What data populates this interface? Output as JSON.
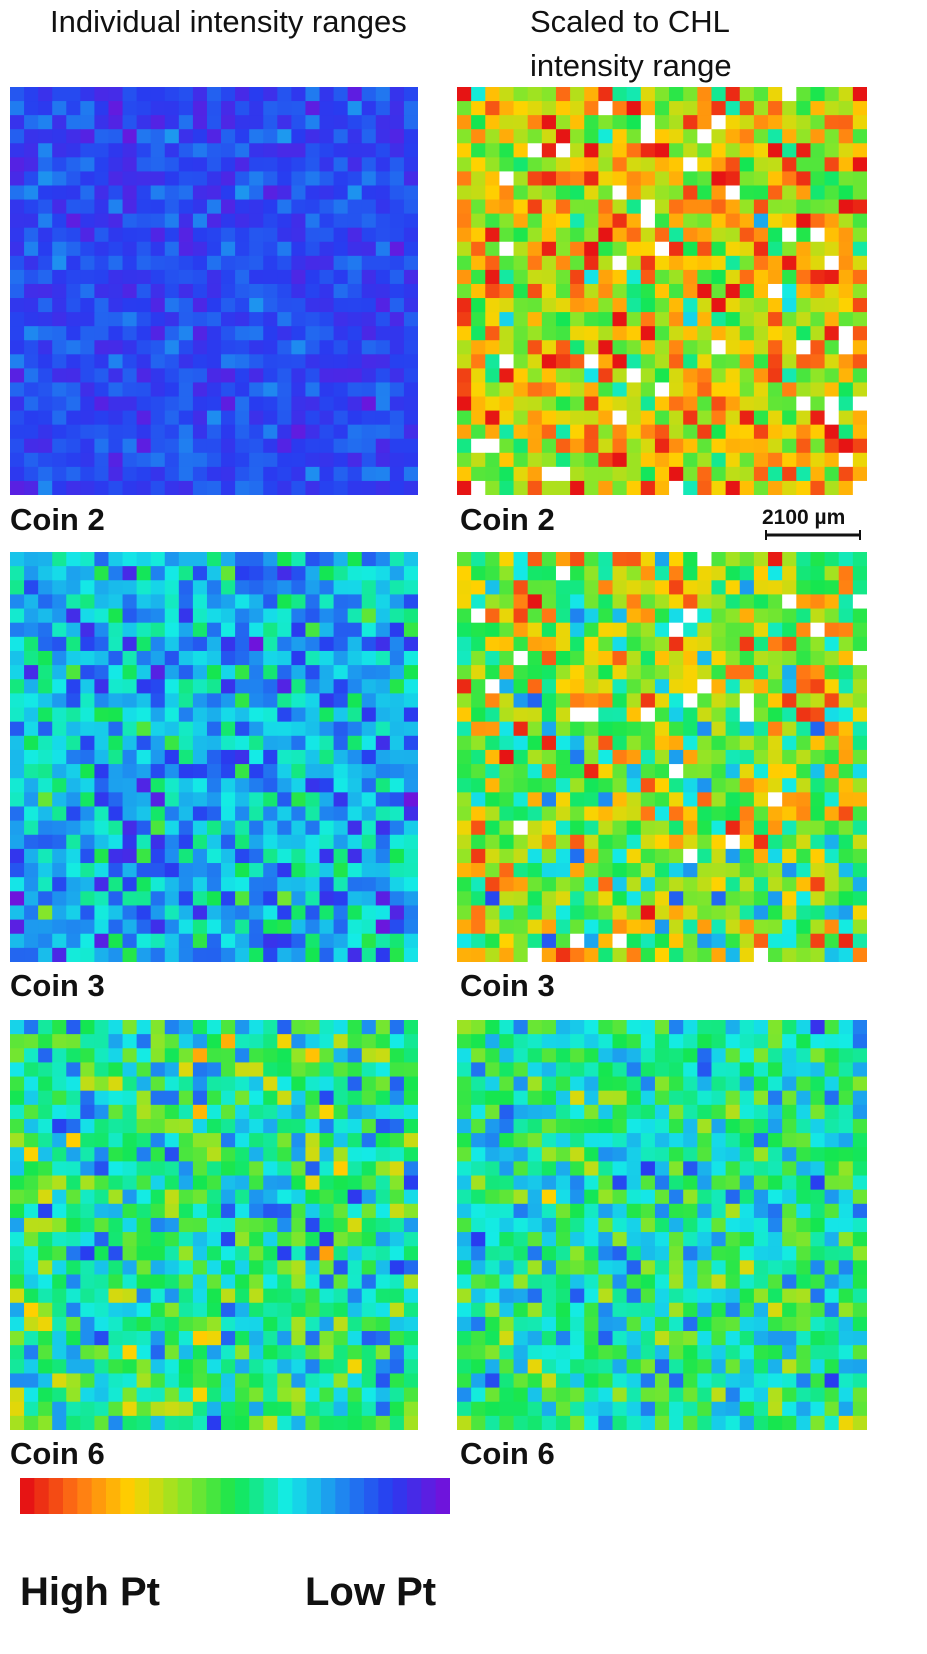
{
  "headers": {
    "left": "Individual intensity ranges",
    "right": "Scaled to CHL intensity range"
  },
  "panels": [
    {
      "label": "Coin 2"
    },
    {
      "label": "Coin 2"
    },
    {
      "label": "Coin 3"
    },
    {
      "label": "Coin 3"
    },
    {
      "label": "Coin 6"
    },
    {
      "label": "Coin 6"
    }
  ],
  "scale_bar": "2100 µm",
  "colorbar": {
    "high": "High Pt",
    "low": "Low Pt"
  }
}
